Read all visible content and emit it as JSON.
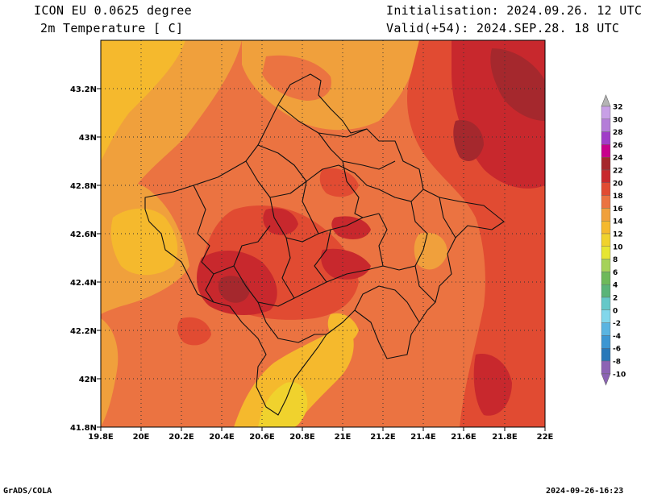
{
  "header": {
    "model": "ICON EU 0.0625 degree",
    "variable": "2m Temperature [ C]",
    "init": "Initialisation: 2024.09.26. 12 UTC",
    "valid": "Valid(+54): 2024.SEP.28. 18 UTC"
  },
  "axes": {
    "lon_ticks": [
      "19.8E",
      "20E",
      "20.2E",
      "20.4E",
      "20.6E",
      "20.8E",
      "21E",
      "21.2E",
      "21.4E",
      "21.6E",
      "21.8E",
      "22E"
    ],
    "lat_ticks": [
      "41.8N",
      "42N",
      "42.2N",
      "42.4N",
      "42.6N",
      "42.8N",
      "43N",
      "43.2N"
    ],
    "lon_range": [
      19.8,
      22.0
    ],
    "lat_range": [
      41.8,
      43.4
    ],
    "grid": true
  },
  "legend": {
    "labels": [
      "32",
      "30",
      "28",
      "26",
      "24",
      "22",
      "20",
      "18",
      "16",
      "14",
      "12",
      "10",
      "8",
      "6",
      "4",
      "2",
      "0",
      "-2",
      "-4",
      "-6",
      "-8",
      "-10"
    ],
    "colors": [
      "#c8a0e6",
      "#b47dd8",
      "#a03cc8",
      "#c8008c",
      "#a5282d",
      "#c8282d",
      "#e14b32",
      "#eb7341",
      "#f0a03c",
      "#f5b92d",
      "#f0d22d",
      "#e6e632",
      "#a5d25a",
      "#6eb95a",
      "#5ab478",
      "#64c8c8",
      "#82d7eb",
      "#5ab4e1",
      "#3c96d2",
      "#2878b9",
      "#8c64b4"
    ]
  },
  "footer": {
    "left": "GrADS/COLA",
    "right": "2024-09-26-16:23"
  }
}
